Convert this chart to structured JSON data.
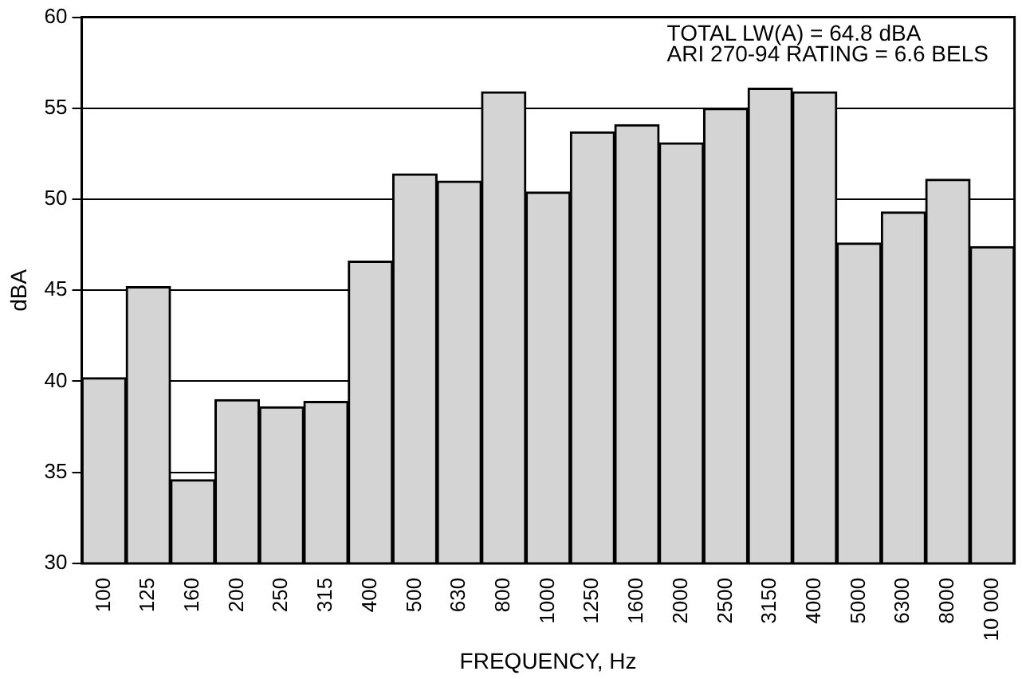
{
  "chart_data": {
    "type": "bar",
    "xlabel": "FREQUENCY, Hz",
    "ylabel": "dBA",
    "categories": [
      "100",
      "125",
      "160",
      "200",
      "250",
      "315",
      "400",
      "500",
      "630",
      "800",
      "1000",
      "1250",
      "1600",
      "2000",
      "2500",
      "3150",
      "4000",
      "5000",
      "6300",
      "8000",
      "10 000"
    ],
    "values": [
      40.2,
      45.2,
      34.6,
      39.0,
      38.6,
      38.9,
      46.6,
      51.4,
      51.0,
      55.9,
      50.4,
      53.7,
      54.1,
      53.1,
      55.0,
      56.1,
      55.9,
      47.6,
      49.3,
      51.1,
      47.4
    ],
    "color": "#d4d4d4",
    "ylim": [
      30,
      60
    ],
    "yticks": [
      30,
      35,
      40,
      45,
      50,
      55,
      60
    ],
    "grid": "y",
    "legend": false,
    "annotations": [
      "TOTAL LW(A) = 64.8 dBA",
      "ARI 270-94 RATING = 6.6 BELS"
    ]
  }
}
